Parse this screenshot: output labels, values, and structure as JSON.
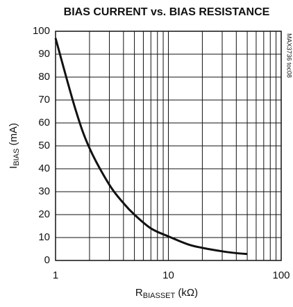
{
  "chart_data": {
    "type": "line",
    "title": "BIAS CURRENT vs. BIAS RESISTANCE",
    "side_note": "MAX3736 toc08",
    "x_label": {
      "main": "R",
      "sub": "BIASSET",
      "rest": " (kΩ)"
    },
    "y_label": {
      "main": "I",
      "sub": "BIAS",
      "rest": " (mA)"
    },
    "xscale": "log",
    "xlim": [
      1,
      100
    ],
    "xticks": [
      1,
      10,
      100
    ],
    "xminorticks": [
      2,
      3,
      4,
      5,
      6,
      7,
      8,
      9,
      20,
      30,
      40,
      50,
      60,
      70,
      80,
      90
    ],
    "ylim": [
      0,
      100
    ],
    "yticks": [
      0,
      10,
      20,
      30,
      40,
      50,
      60,
      70,
      80,
      90,
      100
    ],
    "grid": true,
    "series": [
      {
        "color": "#111111",
        "x": [
          1,
          1.5,
          2,
          3,
          4,
          5,
          7,
          10,
          15,
          20,
          30,
          40,
          50
        ],
        "values": [
          97,
          66,
          49,
          33,
          25,
          20,
          14,
          10.5,
          7,
          5.5,
          4,
          3.2,
          2.8
        ]
      }
    ]
  }
}
